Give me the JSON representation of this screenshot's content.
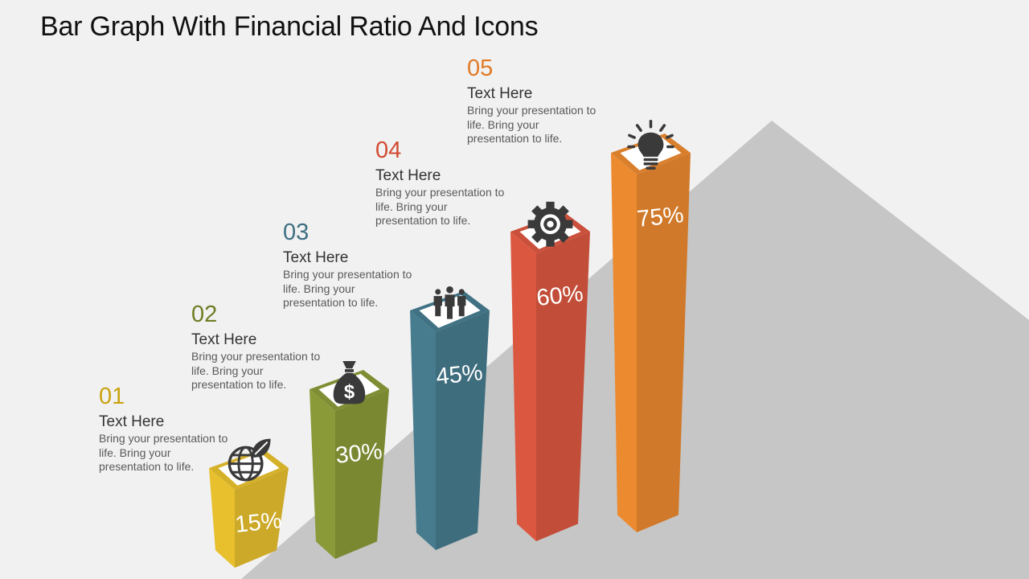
{
  "title": "Bar Graph With Financial Ratio And Icons",
  "chart_data": {
    "type": "bar",
    "categories": [
      "01",
      "02",
      "03",
      "04",
      "05"
    ],
    "values": [
      15,
      30,
      45,
      60,
      75
    ],
    "value_labels": [
      "15%",
      "30%",
      "45%",
      "60%",
      "75%"
    ],
    "unit": "%",
    "icons": [
      "globe-leaf-icon",
      "money-bag-icon",
      "team-icon",
      "gear-target-icon",
      "light-bulb-icon"
    ],
    "colors": [
      "#e8c02e",
      "#8a9a38",
      "#467c8e",
      "#dc5740",
      "#ec8a30"
    ]
  },
  "callouts": [
    {
      "num": "01",
      "heading": "Text Here",
      "body": "Bring your presentation to life. Bring your presentation to life.",
      "color": "#c9a20f"
    },
    {
      "num": "02",
      "heading": "Text Here",
      "body": "Bring your presentation to life. Bring your presentation to life.",
      "color": "#6f7d24"
    },
    {
      "num": "03",
      "heading": "Text Here",
      "body": "Bring your presentation to life. Bring your presentation to life.",
      "color": "#3f6f83"
    },
    {
      "num": "04",
      "heading": "Text Here",
      "body": "Bring your presentation to life. Bring your presentation to life.",
      "color": "#d24a32"
    },
    {
      "num": "05",
      "heading": "Text Here",
      "body": "Bring your presentation to life. Bring your presentation to life.",
      "color": "#e07a26"
    }
  ]
}
